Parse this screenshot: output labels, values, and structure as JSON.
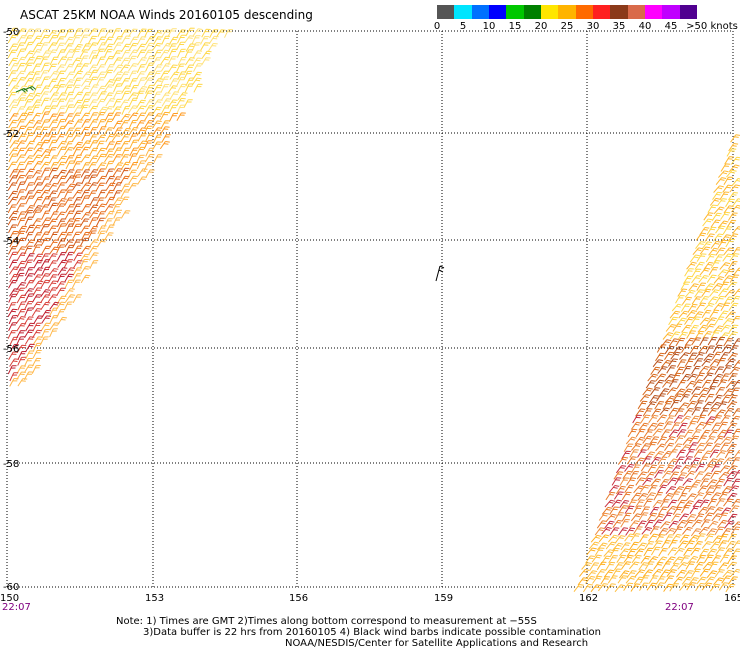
{
  "title": "ASCAT 25KM NOAA Winds 20160105 descending",
  "colorbar": {
    "colors": [
      "#555555",
      "#00e5ff",
      "#0070ff",
      "#0000ff",
      "#00c800",
      "#008000",
      "#ffe600",
      "#ffb400",
      "#ff6a00",
      "#ff2020",
      "#8b3a1a",
      "#d96a4a",
      "#ff00ff",
      "#c000ff",
      "#500090"
    ],
    "labels": [
      "0",
      "5",
      "10",
      "15",
      "20",
      "25",
      "30",
      "35",
      "40",
      "45",
      ">50 knots"
    ]
  },
  "axes": {
    "lat_labels": [
      "-50",
      "-52",
      "-54",
      "-56",
      "-58",
      "-60"
    ],
    "lon_labels": [
      "150",
      "153",
      "156",
      "159",
      "162",
      "165"
    ]
  },
  "time_labels": [
    "22:07",
    "22:07"
  ],
  "notes": [
    "Note: 1) Times are GMT 2)Times along bottom correspond to measurement at −55S",
    "3)Data buffer is 22 hrs from 20160105 4) Black wind barbs indicate possible contamination",
    "NOAA/NESDIS/Center for Satellite Applications and Research"
  ]
}
